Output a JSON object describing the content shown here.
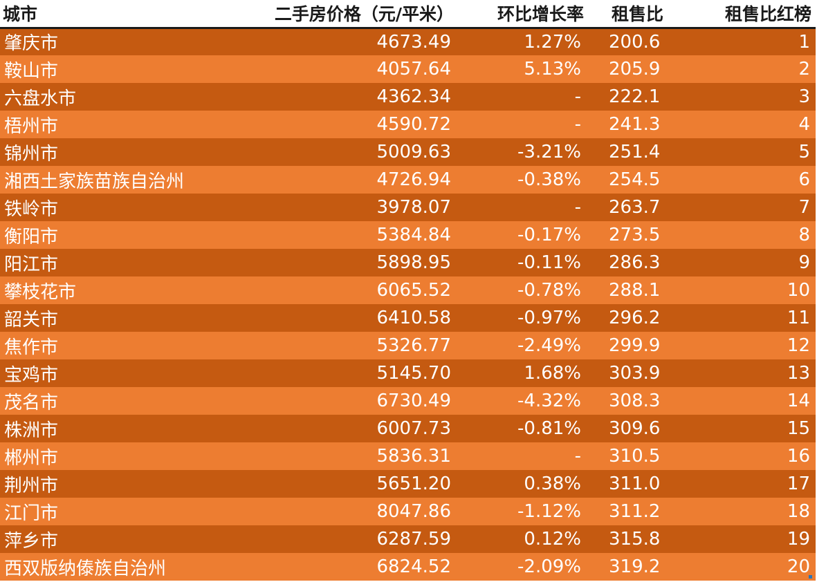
{
  "header": {
    "city": "城市",
    "price": "二手房价格（元/平米）",
    "change": "环比增长率",
    "ratio": "租售比",
    "rank": "租售比红榜"
  },
  "rows": [
    {
      "city": "肇庆市",
      "price": "4673.49",
      "change": "1.27%",
      "ratio": "200.6",
      "rank": "1"
    },
    {
      "city": "鞍山市",
      "price": "4057.64",
      "change": "5.13%",
      "ratio": "205.9",
      "rank": "2"
    },
    {
      "city": "六盘水市",
      "price": "4362.34",
      "change": "-",
      "ratio": "222.1",
      "rank": "3"
    },
    {
      "city": "梧州市",
      "price": "4590.72",
      "change": "-",
      "ratio": "241.3",
      "rank": "4"
    },
    {
      "city": "锦州市",
      "price": "5009.63",
      "change": "-3.21%",
      "ratio": "251.4",
      "rank": "5"
    },
    {
      "city": "湘西土家族苗族自治州",
      "price": "4726.94",
      "change": "-0.38%",
      "ratio": "254.5",
      "rank": "6"
    },
    {
      "city": "铁岭市",
      "price": "3978.07",
      "change": "-",
      "ratio": "263.7",
      "rank": "7"
    },
    {
      "city": "衡阳市",
      "price": "5384.84",
      "change": "-0.17%",
      "ratio": "273.5",
      "rank": "8"
    },
    {
      "city": "阳江市",
      "price": "5898.95",
      "change": "-0.11%",
      "ratio": "286.3",
      "rank": "9"
    },
    {
      "city": "攀枝花市",
      "price": "6065.52",
      "change": "-0.78%",
      "ratio": "288.1",
      "rank": "10"
    },
    {
      "city": "韶关市",
      "price": "6410.58",
      "change": "-0.97%",
      "ratio": "296.2",
      "rank": "11"
    },
    {
      "city": "焦作市",
      "price": "5326.77",
      "change": "-2.49%",
      "ratio": "299.9",
      "rank": "12"
    },
    {
      "city": "宝鸡市",
      "price": "5145.70",
      "change": "1.68%",
      "ratio": "303.9",
      "rank": "13"
    },
    {
      "city": "茂名市",
      "price": "6730.49",
      "change": "-4.32%",
      "ratio": "308.3",
      "rank": "14"
    },
    {
      "city": "株洲市",
      "price": "6007.73",
      "change": "-0.81%",
      "ratio": "309.6",
      "rank": "15"
    },
    {
      "city": "郴州市",
      "price": "5836.31",
      "change": "-",
      "ratio": "310.5",
      "rank": "16"
    },
    {
      "city": "荆州市",
      "price": "5651.20",
      "change": "0.38%",
      "ratio": "311.0",
      "rank": "17"
    },
    {
      "city": "江门市",
      "price": "8047.86",
      "change": "-1.12%",
      "ratio": "311.2",
      "rank": "18"
    },
    {
      "city": "萍乡市",
      "price": "6287.59",
      "change": "0.12%",
      "ratio": "315.8",
      "rank": "19"
    },
    {
      "city": "西双版纳傣族自治州",
      "price": "6824.52",
      "change": "-2.09%",
      "ratio": "319.2",
      "rank": "20"
    }
  ],
  "colors": {
    "row_dark": "#c55a11",
    "row_light": "#ed7d31",
    "text_on_rows": "#ffffff",
    "header_text": "#1a1a1a",
    "selection_handle": "#2e75b6"
  }
}
